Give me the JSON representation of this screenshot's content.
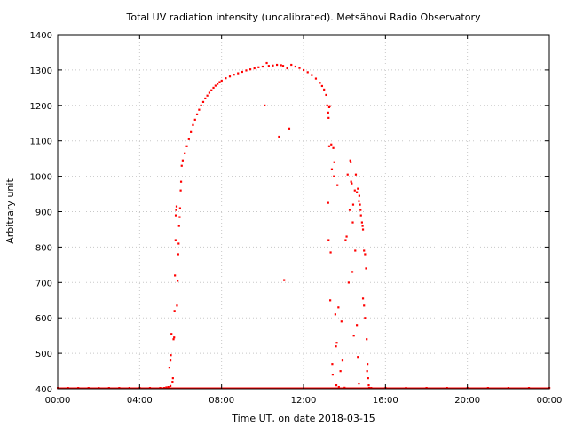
{
  "chart_data": {
    "type": "scatter",
    "title": "Total UV radiation intensity (uncalibrated). Metsähovi Radio Observatory",
    "xlabel": "Time UT, on date 2018-03-15",
    "ylabel": "Arbitrary unit",
    "xlim": [
      0,
      24
    ],
    "ylim": [
      400,
      1400
    ],
    "x_ticks": [
      {
        "value": 0,
        "label": "00:00"
      },
      {
        "value": 4,
        "label": "04:00"
      },
      {
        "value": 8,
        "label": "08:00"
      },
      {
        "value": 12,
        "label": "12:00"
      },
      {
        "value": 16,
        "label": "16:00"
      },
      {
        "value": 20,
        "label": "20:00"
      },
      {
        "value": 24,
        "label": "00:00"
      }
    ],
    "y_ticks": [
      {
        "value": 400,
        "label": "400"
      },
      {
        "value": 500,
        "label": "500"
      },
      {
        "value": 600,
        "label": "600"
      },
      {
        "value": 700,
        "label": "700"
      },
      {
        "value": 800,
        "label": "800"
      },
      {
        "value": 900,
        "label": "900"
      },
      {
        "value": 1000,
        "label": "1000"
      },
      {
        "value": 1100,
        "label": "1100"
      },
      {
        "value": 1200,
        "label": "1200"
      },
      {
        "value": 1300,
        "label": "1300"
      },
      {
        "value": 1400,
        "label": "1400"
      }
    ],
    "grid": true,
    "legend": "none",
    "series": [
      {
        "color": "#ff0000",
        "marker": "dot",
        "points": [
          [
            0.0,
            400
          ],
          [
            0.5,
            400
          ],
          [
            1.0,
            400
          ],
          [
            1.5,
            400
          ],
          [
            2.0,
            400
          ],
          [
            2.5,
            400
          ],
          [
            3.0,
            400
          ],
          [
            3.5,
            400
          ],
          [
            4.0,
            400
          ],
          [
            4.5,
            400
          ],
          [
            5.0,
            400
          ],
          [
            5.2,
            402
          ],
          [
            5.3,
            404
          ],
          [
            5.4,
            405
          ],
          [
            5.5,
            408
          ],
          [
            5.45,
            460
          ],
          [
            5.5,
            480
          ],
          [
            5.52,
            495
          ],
          [
            5.55,
            555
          ],
          [
            5.6,
            420
          ],
          [
            5.62,
            430
          ],
          [
            5.65,
            540
          ],
          [
            5.68,
            545
          ],
          [
            5.7,
            620
          ],
          [
            5.72,
            720
          ],
          [
            5.75,
            820
          ],
          [
            5.76,
            890
          ],
          [
            5.78,
            905
          ],
          [
            5.8,
            915
          ],
          [
            5.82,
            635
          ],
          [
            5.85,
            705
          ],
          [
            5.88,
            780
          ],
          [
            5.9,
            810
          ],
          [
            5.92,
            860
          ],
          [
            5.95,
            885
          ],
          [
            5.97,
            910
          ],
          [
            6.0,
            960
          ],
          [
            6.02,
            985
          ],
          [
            6.05,
            1030
          ],
          [
            6.1,
            1045
          ],
          [
            6.2,
            1065
          ],
          [
            6.3,
            1085
          ],
          [
            6.4,
            1105
          ],
          [
            6.5,
            1125
          ],
          [
            6.6,
            1145
          ],
          [
            6.7,
            1160
          ],
          [
            6.8,
            1175
          ],
          [
            6.9,
            1188
          ],
          [
            7.0,
            1200
          ],
          [
            7.1,
            1210
          ],
          [
            7.2,
            1220
          ],
          [
            7.3,
            1228
          ],
          [
            7.4,
            1236
          ],
          [
            7.5,
            1243
          ],
          [
            7.6,
            1250
          ],
          [
            7.7,
            1256
          ],
          [
            7.8,
            1261
          ],
          [
            7.9,
            1266
          ],
          [
            8.0,
            1270
          ],
          [
            8.2,
            1277
          ],
          [
            8.4,
            1282
          ],
          [
            8.6,
            1287
          ],
          [
            8.8,
            1291
          ],
          [
            9.0,
            1295
          ],
          [
            9.2,
            1299
          ],
          [
            9.4,
            1302
          ],
          [
            9.6,
            1305
          ],
          [
            9.8,
            1308
          ],
          [
            10.0,
            1310
          ],
          [
            10.1,
            1200
          ],
          [
            10.2,
            1320
          ],
          [
            10.3,
            1312
          ],
          [
            10.5,
            1313
          ],
          [
            10.7,
            1315
          ],
          [
            10.8,
            1112
          ],
          [
            10.9,
            1314
          ],
          [
            11.0,
            1312
          ],
          [
            11.05,
            707
          ],
          [
            11.2,
            1305
          ],
          [
            11.3,
            1135
          ],
          [
            11.4,
            1315
          ],
          [
            11.6,
            1310
          ],
          [
            11.8,
            1306
          ],
          [
            12.0,
            1300
          ],
          [
            12.2,
            1294
          ],
          [
            12.4,
            1286
          ],
          [
            12.6,
            1276
          ],
          [
            12.8,
            1264
          ],
          [
            12.9,
            1255
          ],
          [
            13.0,
            1245
          ],
          [
            13.1,
            1230
          ],
          [
            13.15,
            1200
          ],
          [
            13.2,
            1180
          ],
          [
            13.22,
            1165
          ],
          [
            13.25,
            1195
          ],
          [
            13.28,
            1198
          ],
          [
            13.2,
            925
          ],
          [
            13.22,
            820
          ],
          [
            13.25,
            1085
          ],
          [
            13.3,
            650
          ],
          [
            13.32,
            785
          ],
          [
            13.35,
            1090
          ],
          [
            13.38,
            1020
          ],
          [
            13.4,
            470
          ],
          [
            13.42,
            440
          ],
          [
            13.45,
            1080
          ],
          [
            13.48,
            1000
          ],
          [
            13.5,
            1040
          ],
          [
            13.55,
            610
          ],
          [
            13.58,
            520
          ],
          [
            13.6,
            410
          ],
          [
            13.62,
            530
          ],
          [
            13.65,
            975
          ],
          [
            13.7,
            630
          ],
          [
            13.72,
            405
          ],
          [
            13.8,
            450
          ],
          [
            13.85,
            590
          ],
          [
            13.9,
            480
          ],
          [
            14.0,
            403
          ],
          [
            14.05,
            820
          ],
          [
            14.1,
            830
          ],
          [
            14.15,
            1005
          ],
          [
            14.2,
            700
          ],
          [
            14.25,
            905
          ],
          [
            14.28,
            1045
          ],
          [
            14.3,
            1040
          ],
          [
            14.32,
            985
          ],
          [
            14.35,
            980
          ],
          [
            14.38,
            730
          ],
          [
            14.4,
            870
          ],
          [
            14.42,
            920
          ],
          [
            14.45,
            550
          ],
          [
            14.5,
            960
          ],
          [
            14.52,
            790
          ],
          [
            14.55,
            1005
          ],
          [
            14.6,
            955
          ],
          [
            14.65,
            965
          ],
          [
            14.7,
            930
          ],
          [
            14.72,
            945
          ],
          [
            14.75,
            920
          ],
          [
            14.78,
            905
          ],
          [
            14.8,
            890
          ],
          [
            14.85,
            870
          ],
          [
            14.88,
            860
          ],
          [
            14.9,
            850
          ],
          [
            14.95,
            790
          ],
          [
            15.0,
            780
          ],
          [
            14.6,
            580
          ],
          [
            14.65,
            490
          ],
          [
            14.7,
            415
          ],
          [
            14.9,
            655
          ],
          [
            14.95,
            635
          ],
          [
            15.0,
            600
          ],
          [
            15.05,
            740
          ],
          [
            15.08,
            540
          ],
          [
            15.1,
            450
          ],
          [
            15.12,
            470
          ],
          [
            15.15,
            430
          ],
          [
            15.18,
            410
          ],
          [
            15.2,
            402
          ],
          [
            15.3,
            400
          ],
          [
            16.0,
            400
          ],
          [
            17.0,
            400
          ],
          [
            18.0,
            400
          ],
          [
            19.0,
            400
          ],
          [
            20.0,
            400
          ],
          [
            21.0,
            400
          ],
          [
            22.0,
            400
          ],
          [
            23.0,
            400
          ],
          [
            24.0,
            400
          ]
        ]
      }
    ]
  }
}
